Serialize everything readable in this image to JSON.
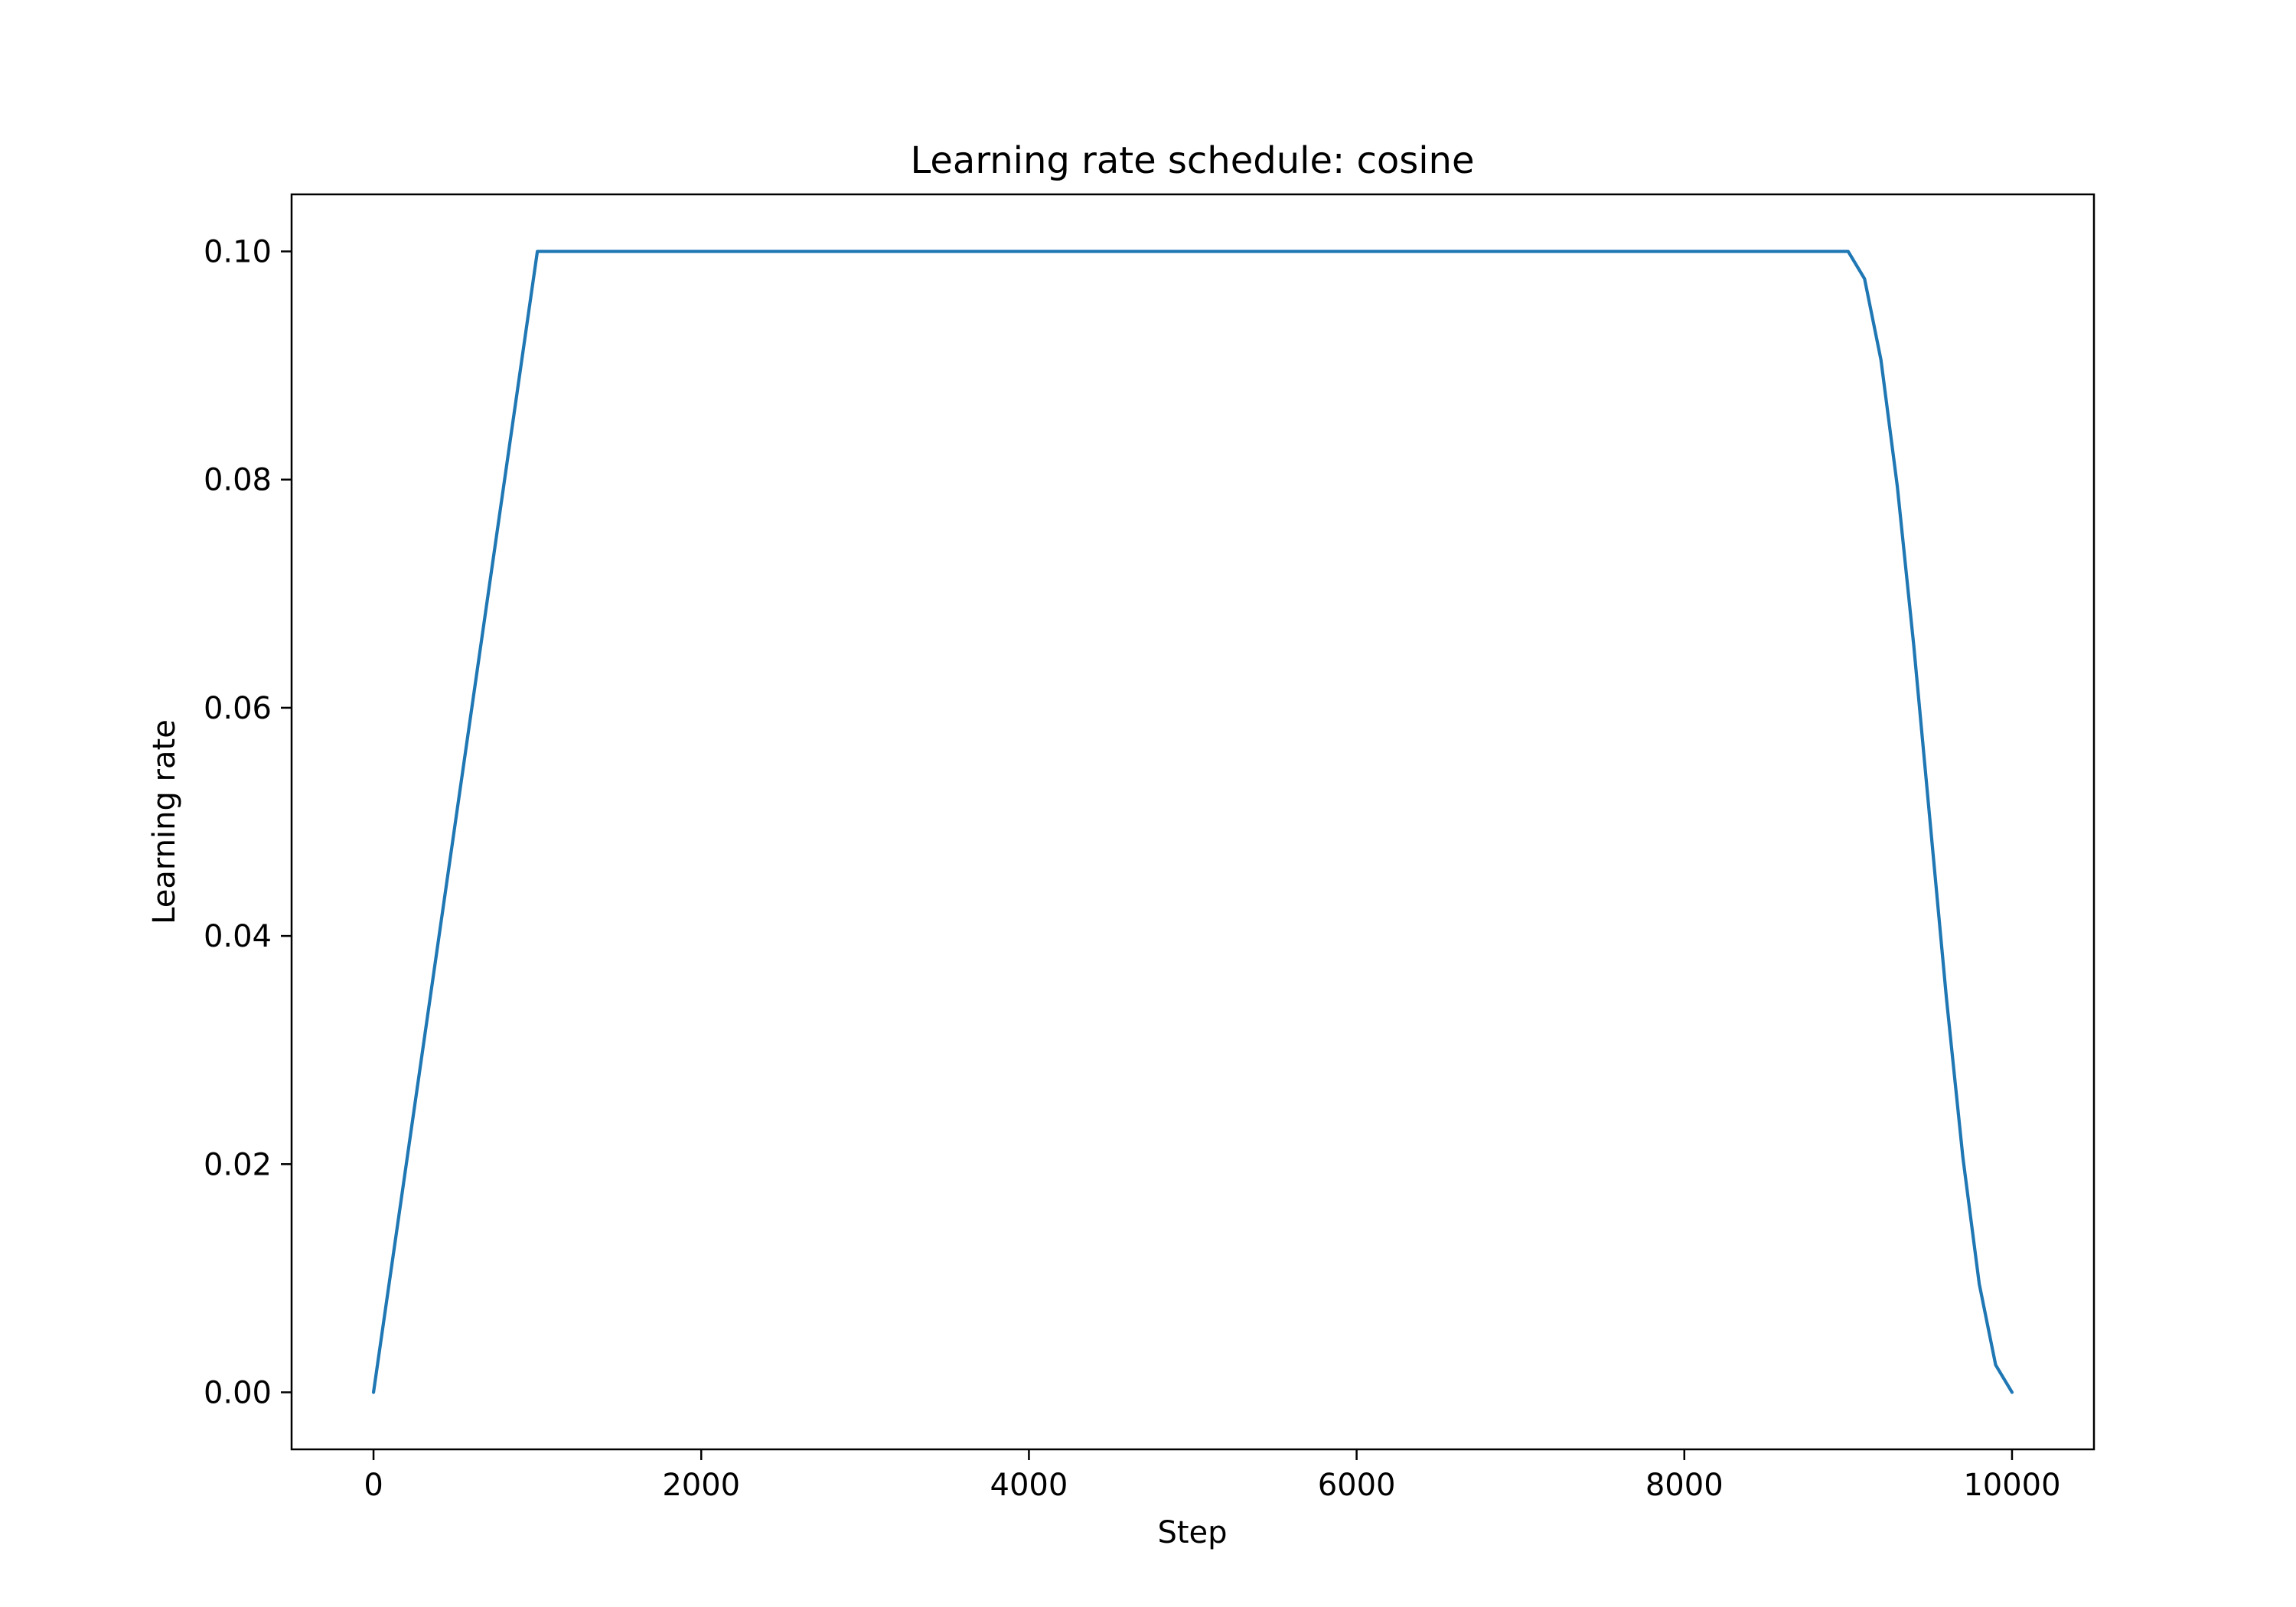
{
  "chart_data": {
    "type": "line",
    "title": "Learning rate schedule: cosine",
    "xlabel": "Step",
    "ylabel": "Learning rate",
    "xlim": [
      -500,
      10500
    ],
    "ylim": [
      -0.005,
      0.105
    ],
    "xticks": [
      0,
      2000,
      4000,
      6000,
      8000,
      10000
    ],
    "xtick_labels": [
      "0",
      "2000",
      "4000",
      "6000",
      "8000",
      "10000"
    ],
    "yticks": [
      0.0,
      0.02,
      0.04,
      0.06,
      0.08,
      0.1
    ],
    "ytick_labels": [
      "0.00",
      "0.02",
      "0.04",
      "0.06",
      "0.08",
      "0.10"
    ],
    "grid": false,
    "series": [
      {
        "color": "#1f77b4",
        "x": [
          0,
          250,
          500,
          750,
          1000,
          9000,
          9100,
          9200,
          9300,
          9400,
          9500,
          9600,
          9700,
          9800,
          9900,
          10000
        ],
        "y": [
          0.0,
          0.025,
          0.05,
          0.075,
          0.1,
          0.1,
          0.0976,
          0.0905,
          0.0794,
          0.0655,
          0.05,
          0.0345,
          0.0206,
          0.0095,
          0.0024,
          0.0
        ]
      }
    ]
  }
}
